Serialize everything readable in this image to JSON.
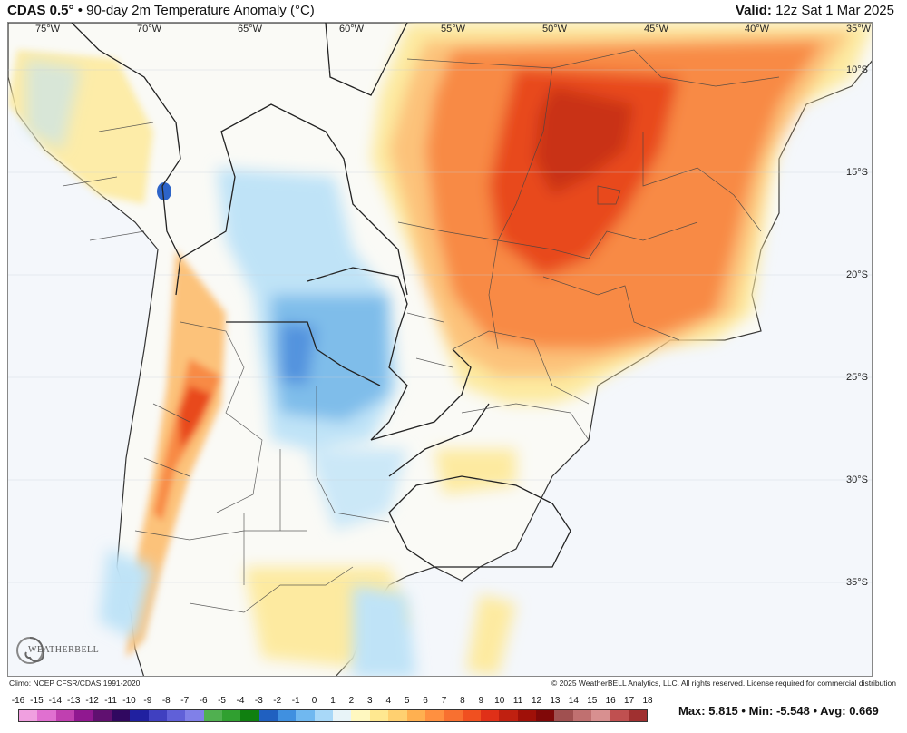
{
  "header": {
    "model": "CDAS 0.5",
    "degree_mark": "°",
    "bullet": "•",
    "title": "90-day 2m Temperature Anomaly (°C)",
    "valid_label": "Valid:",
    "valid_time": "12z Sat 1 Mar 2025"
  },
  "map": {
    "lon_labels": [
      "75°W",
      "70°W",
      "65°W",
      "60°W",
      "55°W",
      "50°W",
      "45°W",
      "40°W",
      "35°W"
    ],
    "lat_labels": [
      "10°S",
      "15°S",
      "20°S",
      "25°S",
      "30°S",
      "35°S"
    ]
  },
  "logo": {
    "text": "WEATHERBELL",
    "icon": "swirl-logo-icon"
  },
  "footer": {
    "climo": "Climo: NCEP CFSR/CDAS 1991-2020",
    "copyright": "© 2025 WeatherBELL Analytics, LLC. All rights reserved. License required for commercial distribution"
  },
  "colorbar": {
    "labels": [
      "-16",
      "-15",
      "-14",
      "-13",
      "-12",
      "-11",
      "-10",
      "-9",
      "-8",
      "-7",
      "-6",
      "-5",
      "-4",
      "-3",
      "-2",
      "-1",
      "0",
      "1",
      "2",
      "3",
      "4",
      "5",
      "6",
      "7",
      "8",
      "9",
      "10",
      "11",
      "12",
      "13",
      "14",
      "15",
      "16",
      "17",
      "18"
    ],
    "colors": [
      "#f0a0e0",
      "#e070d0",
      "#c040b0",
      "#901890",
      "#601070",
      "#300860",
      "#2020a0",
      "#4040c0",
      "#6060d8",
      "#8080e8",
      "#50b050",
      "#30a030",
      "#108010",
      "#2060c0",
      "#4090e0",
      "#70b8f0",
      "#a8d8f8",
      "#e8f4f8",
      "#fff8c0",
      "#ffe890",
      "#ffd070",
      "#ffb050",
      "#ff9040",
      "#f87030",
      "#f05020",
      "#e03018",
      "#c02010",
      "#a01008",
      "#800808",
      "#a05050",
      "#c07070",
      "#d89090",
      "#c05050",
      "#a03030"
    ]
  },
  "stats": {
    "max_label": "Max:",
    "max": "5.815",
    "min_label": "Min:",
    "min": "-5.548",
    "avg_label": "Avg:",
    "avg": "0.669",
    "sep": "•"
  },
  "colors": {
    "warm_strong": "#e84a1e",
    "warm_mid": "#f88a44",
    "warm_light": "#fcc27a",
    "warm_pale": "#fdeaa0",
    "cool_light": "#bfe3f7",
    "cool_mid": "#7fbdea",
    "cool_strong": "#3f82d8",
    "ocean": "#f4f7fb"
  }
}
